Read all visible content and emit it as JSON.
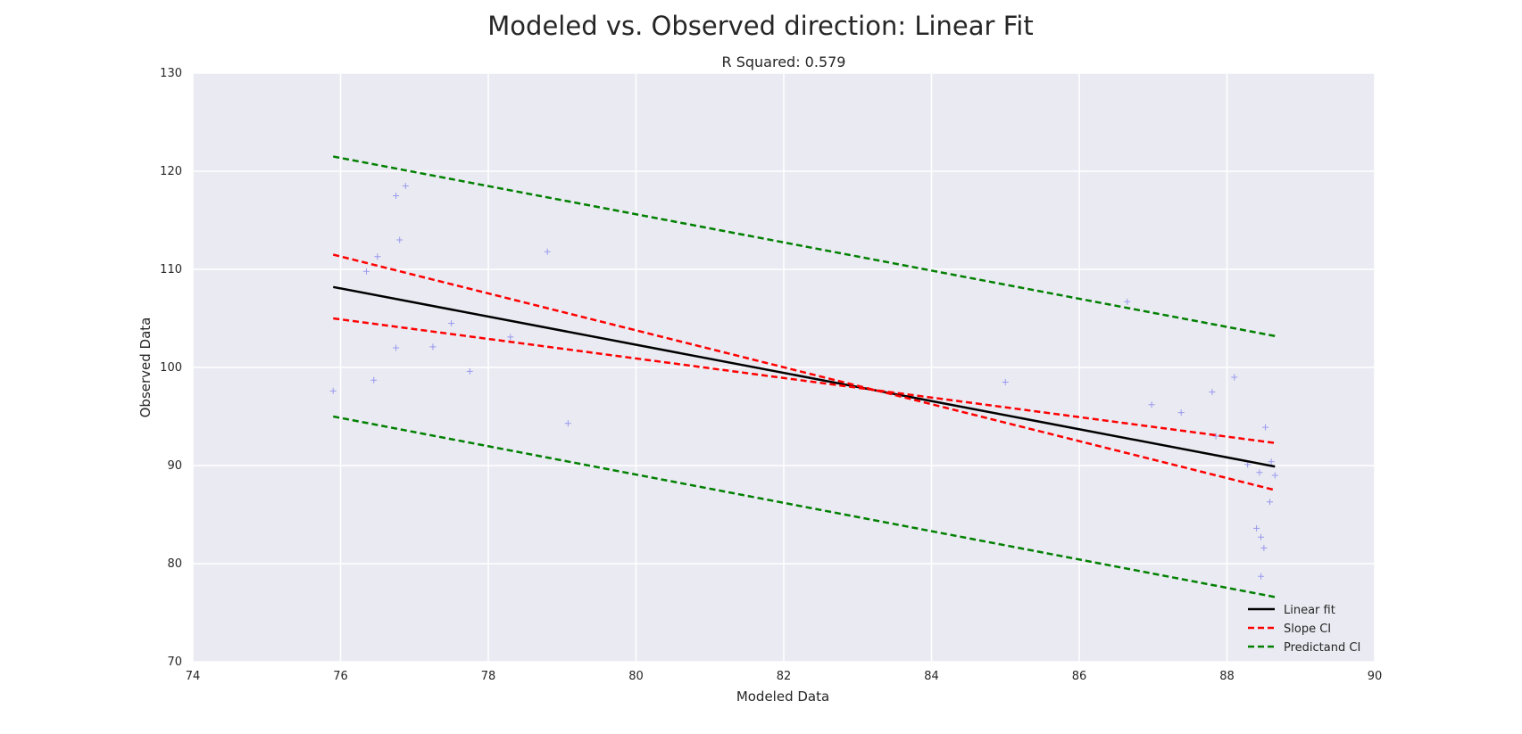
{
  "chart_data": {
    "type": "scatter",
    "title": "Modeled vs. Observed direction: Linear Fit",
    "subtitle": "R Squared: 0.579",
    "xlabel": "Modeled Data",
    "ylabel": "Observed Data",
    "xlim": [
      74,
      90
    ],
    "ylim": [
      70,
      130
    ],
    "xticks": [
      74,
      76,
      78,
      80,
      82,
      84,
      86,
      88,
      90
    ],
    "yticks": [
      70,
      80,
      90,
      100,
      110,
      120,
      130
    ],
    "grid": true,
    "legend_position": "bottom-right",
    "points": {
      "marker": "plus",
      "color": "#9999ee",
      "data": [
        [
          75.9,
          97.6
        ],
        [
          76.35,
          109.8
        ],
        [
          76.45,
          98.7
        ],
        [
          76.5,
          111.3
        ],
        [
          76.75,
          117.5
        ],
        [
          76.75,
          102.0
        ],
        [
          76.8,
          113.0
        ],
        [
          76.88,
          118.5
        ],
        [
          77.25,
          102.1
        ],
        [
          77.5,
          104.5
        ],
        [
          77.75,
          99.6
        ],
        [
          78.3,
          103.1
        ],
        [
          78.8,
          111.8
        ],
        [
          79.08,
          94.3
        ],
        [
          85.0,
          98.5
        ],
        [
          86.65,
          106.7
        ],
        [
          86.98,
          96.2
        ],
        [
          87.38,
          95.4
        ],
        [
          87.8,
          97.5
        ],
        [
          87.85,
          93.0
        ],
        [
          88.1,
          99.0
        ],
        [
          88.28,
          90.1
        ],
        [
          88.4,
          83.6
        ],
        [
          88.44,
          89.3
        ],
        [
          88.46,
          82.7
        ],
        [
          88.46,
          78.7
        ],
        [
          88.5,
          81.6
        ],
        [
          88.52,
          93.9
        ],
        [
          88.58,
          86.3
        ],
        [
          88.6,
          90.4
        ],
        [
          88.65,
          89.0
        ]
      ]
    },
    "series": [
      {
        "name": "Linear fit",
        "style": "solid",
        "color": "#000000",
        "x": [
          75.9,
          88.65
        ],
        "y": [
          108.2,
          89.9
        ]
      },
      {
        "name": "Slope CI",
        "style": "dashed",
        "color": "#ff0000",
        "x": [
          75.9,
          88.65
        ],
        "y": [
          111.5,
          87.5
        ]
      },
      {
        "name": "Slope CI",
        "style": "dashed",
        "color": "#ff0000",
        "legend": false,
        "x": [
          75.9,
          88.65
        ],
        "y": [
          105.0,
          92.3
        ]
      },
      {
        "name": "Predictand CI",
        "style": "dashed",
        "color": "#008000",
        "x": [
          75.9,
          88.65
        ],
        "y": [
          121.5,
          103.2
        ]
      },
      {
        "name": "Predictand CI",
        "style": "dashed",
        "color": "#008000",
        "legend": false,
        "x": [
          75.9,
          88.65
        ],
        "y": [
          95.0,
          76.6
        ]
      }
    ],
    "legend": [
      {
        "label": "Linear fit",
        "color": "#000000"
      },
      {
        "label": "Slope CI",
        "color": "#ff0000"
      },
      {
        "label": "Predictand CI",
        "color": "#008000"
      }
    ],
    "plot_background": "#eaeaf2",
    "grid_color": "#ffffff"
  }
}
